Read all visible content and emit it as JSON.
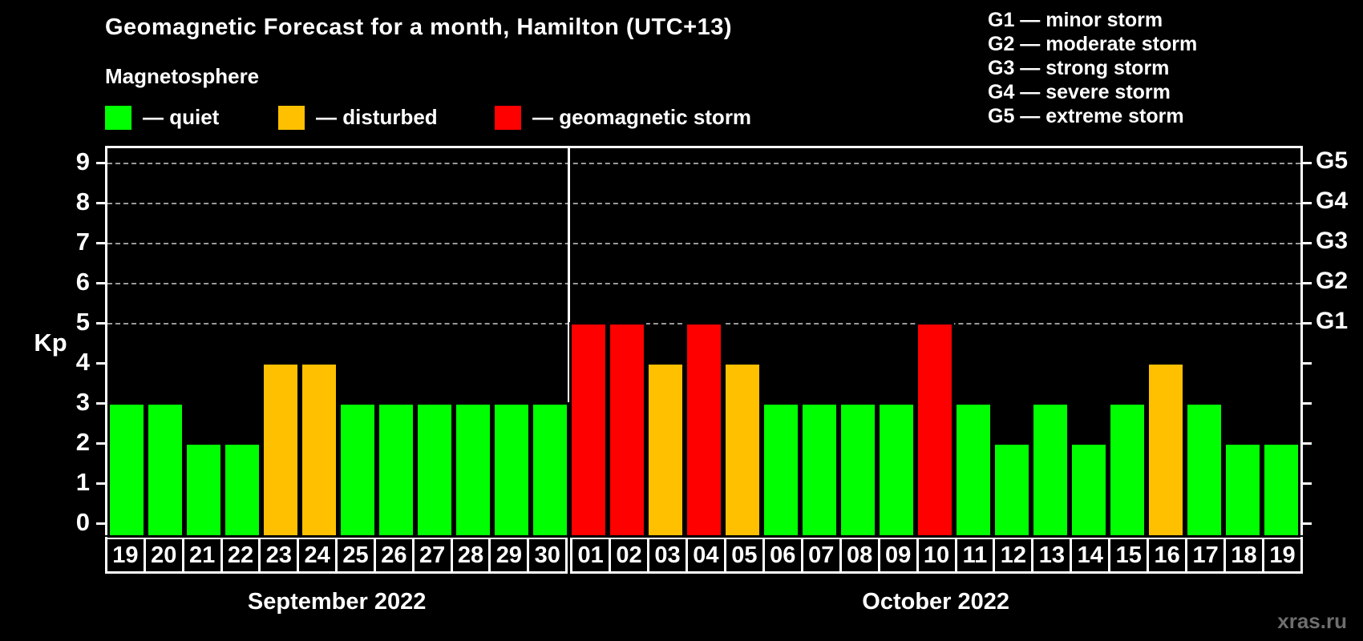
{
  "title": "Geomagnetic Forecast for a month, Hamilton (UTC+13)",
  "subtitle": "Magnetosphere",
  "legend": [
    {
      "status": "quiet",
      "label": "— quiet",
      "color": "#00ff00"
    },
    {
      "status": "disturbed",
      "label": "— disturbed",
      "color": "#ffc000"
    },
    {
      "status": "storm",
      "label": "— geomagnetic storm",
      "color": "#ff0000"
    }
  ],
  "g_scale_legend": [
    "G1 — minor storm",
    "G2 — moderate storm",
    "G3 — strong storm",
    "G4 — severe storm",
    "G5 — extreme storm"
  ],
  "watermark": "xras.ru",
  "chart_data": {
    "type": "bar",
    "ylabel": "Kp",
    "ylim": [
      0,
      9
    ],
    "yticks": [
      0,
      1,
      2,
      3,
      4,
      5,
      6,
      7,
      8,
      9
    ],
    "gridline_levels": [
      5,
      6,
      7,
      8,
      9
    ],
    "grid": "dashed, levels G1-G5 only",
    "legend_position": "top",
    "right_axis": [
      {
        "label": "G5",
        "value": 9
      },
      {
        "label": "G4",
        "value": 8
      },
      {
        "label": "G3",
        "value": 7
      },
      {
        "label": "G2",
        "value": 6
      },
      {
        "label": "G1",
        "value": 5
      }
    ],
    "status_colors": {
      "quiet": "#00ff00",
      "disturbed": "#ffc000",
      "storm": "#ff0000"
    },
    "groups": [
      {
        "label": "September 2022",
        "bars": [
          {
            "day": "19",
            "value": 3,
            "status": "quiet"
          },
          {
            "day": "20",
            "value": 3,
            "status": "quiet"
          },
          {
            "day": "21",
            "value": 2,
            "status": "quiet"
          },
          {
            "day": "22",
            "value": 2,
            "status": "quiet"
          },
          {
            "day": "23",
            "value": 4,
            "status": "disturbed"
          },
          {
            "day": "24",
            "value": 4,
            "status": "disturbed"
          },
          {
            "day": "25",
            "value": 3,
            "status": "quiet"
          },
          {
            "day": "26",
            "value": 3,
            "status": "quiet"
          },
          {
            "day": "27",
            "value": 3,
            "status": "quiet"
          },
          {
            "day": "28",
            "value": 3,
            "status": "quiet"
          },
          {
            "day": "29",
            "value": 3,
            "status": "quiet"
          },
          {
            "day": "30",
            "value": 3,
            "status": "quiet"
          }
        ]
      },
      {
        "label": "October 2022",
        "bars": [
          {
            "day": "01",
            "value": 5,
            "status": "storm"
          },
          {
            "day": "02",
            "value": 5,
            "status": "storm"
          },
          {
            "day": "03",
            "value": 4,
            "status": "disturbed"
          },
          {
            "day": "04",
            "value": 5,
            "status": "storm"
          },
          {
            "day": "05",
            "value": 4,
            "status": "disturbed"
          },
          {
            "day": "06",
            "value": 3,
            "status": "quiet"
          },
          {
            "day": "07",
            "value": 3,
            "status": "quiet"
          },
          {
            "day": "08",
            "value": 3,
            "status": "quiet"
          },
          {
            "day": "09",
            "value": 3,
            "status": "quiet"
          },
          {
            "day": "10",
            "value": 5,
            "status": "storm"
          },
          {
            "day": "11",
            "value": 3,
            "status": "quiet"
          },
          {
            "day": "12",
            "value": 2,
            "status": "quiet"
          },
          {
            "day": "13",
            "value": 3,
            "status": "quiet"
          },
          {
            "day": "14",
            "value": 2,
            "status": "quiet"
          },
          {
            "day": "15",
            "value": 3,
            "status": "quiet"
          },
          {
            "day": "16",
            "value": 4,
            "status": "disturbed"
          },
          {
            "day": "17",
            "value": 3,
            "status": "quiet"
          },
          {
            "day": "18",
            "value": 2,
            "status": "quiet"
          },
          {
            "day": "19",
            "value": 2,
            "status": "quiet"
          }
        ]
      }
    ]
  }
}
